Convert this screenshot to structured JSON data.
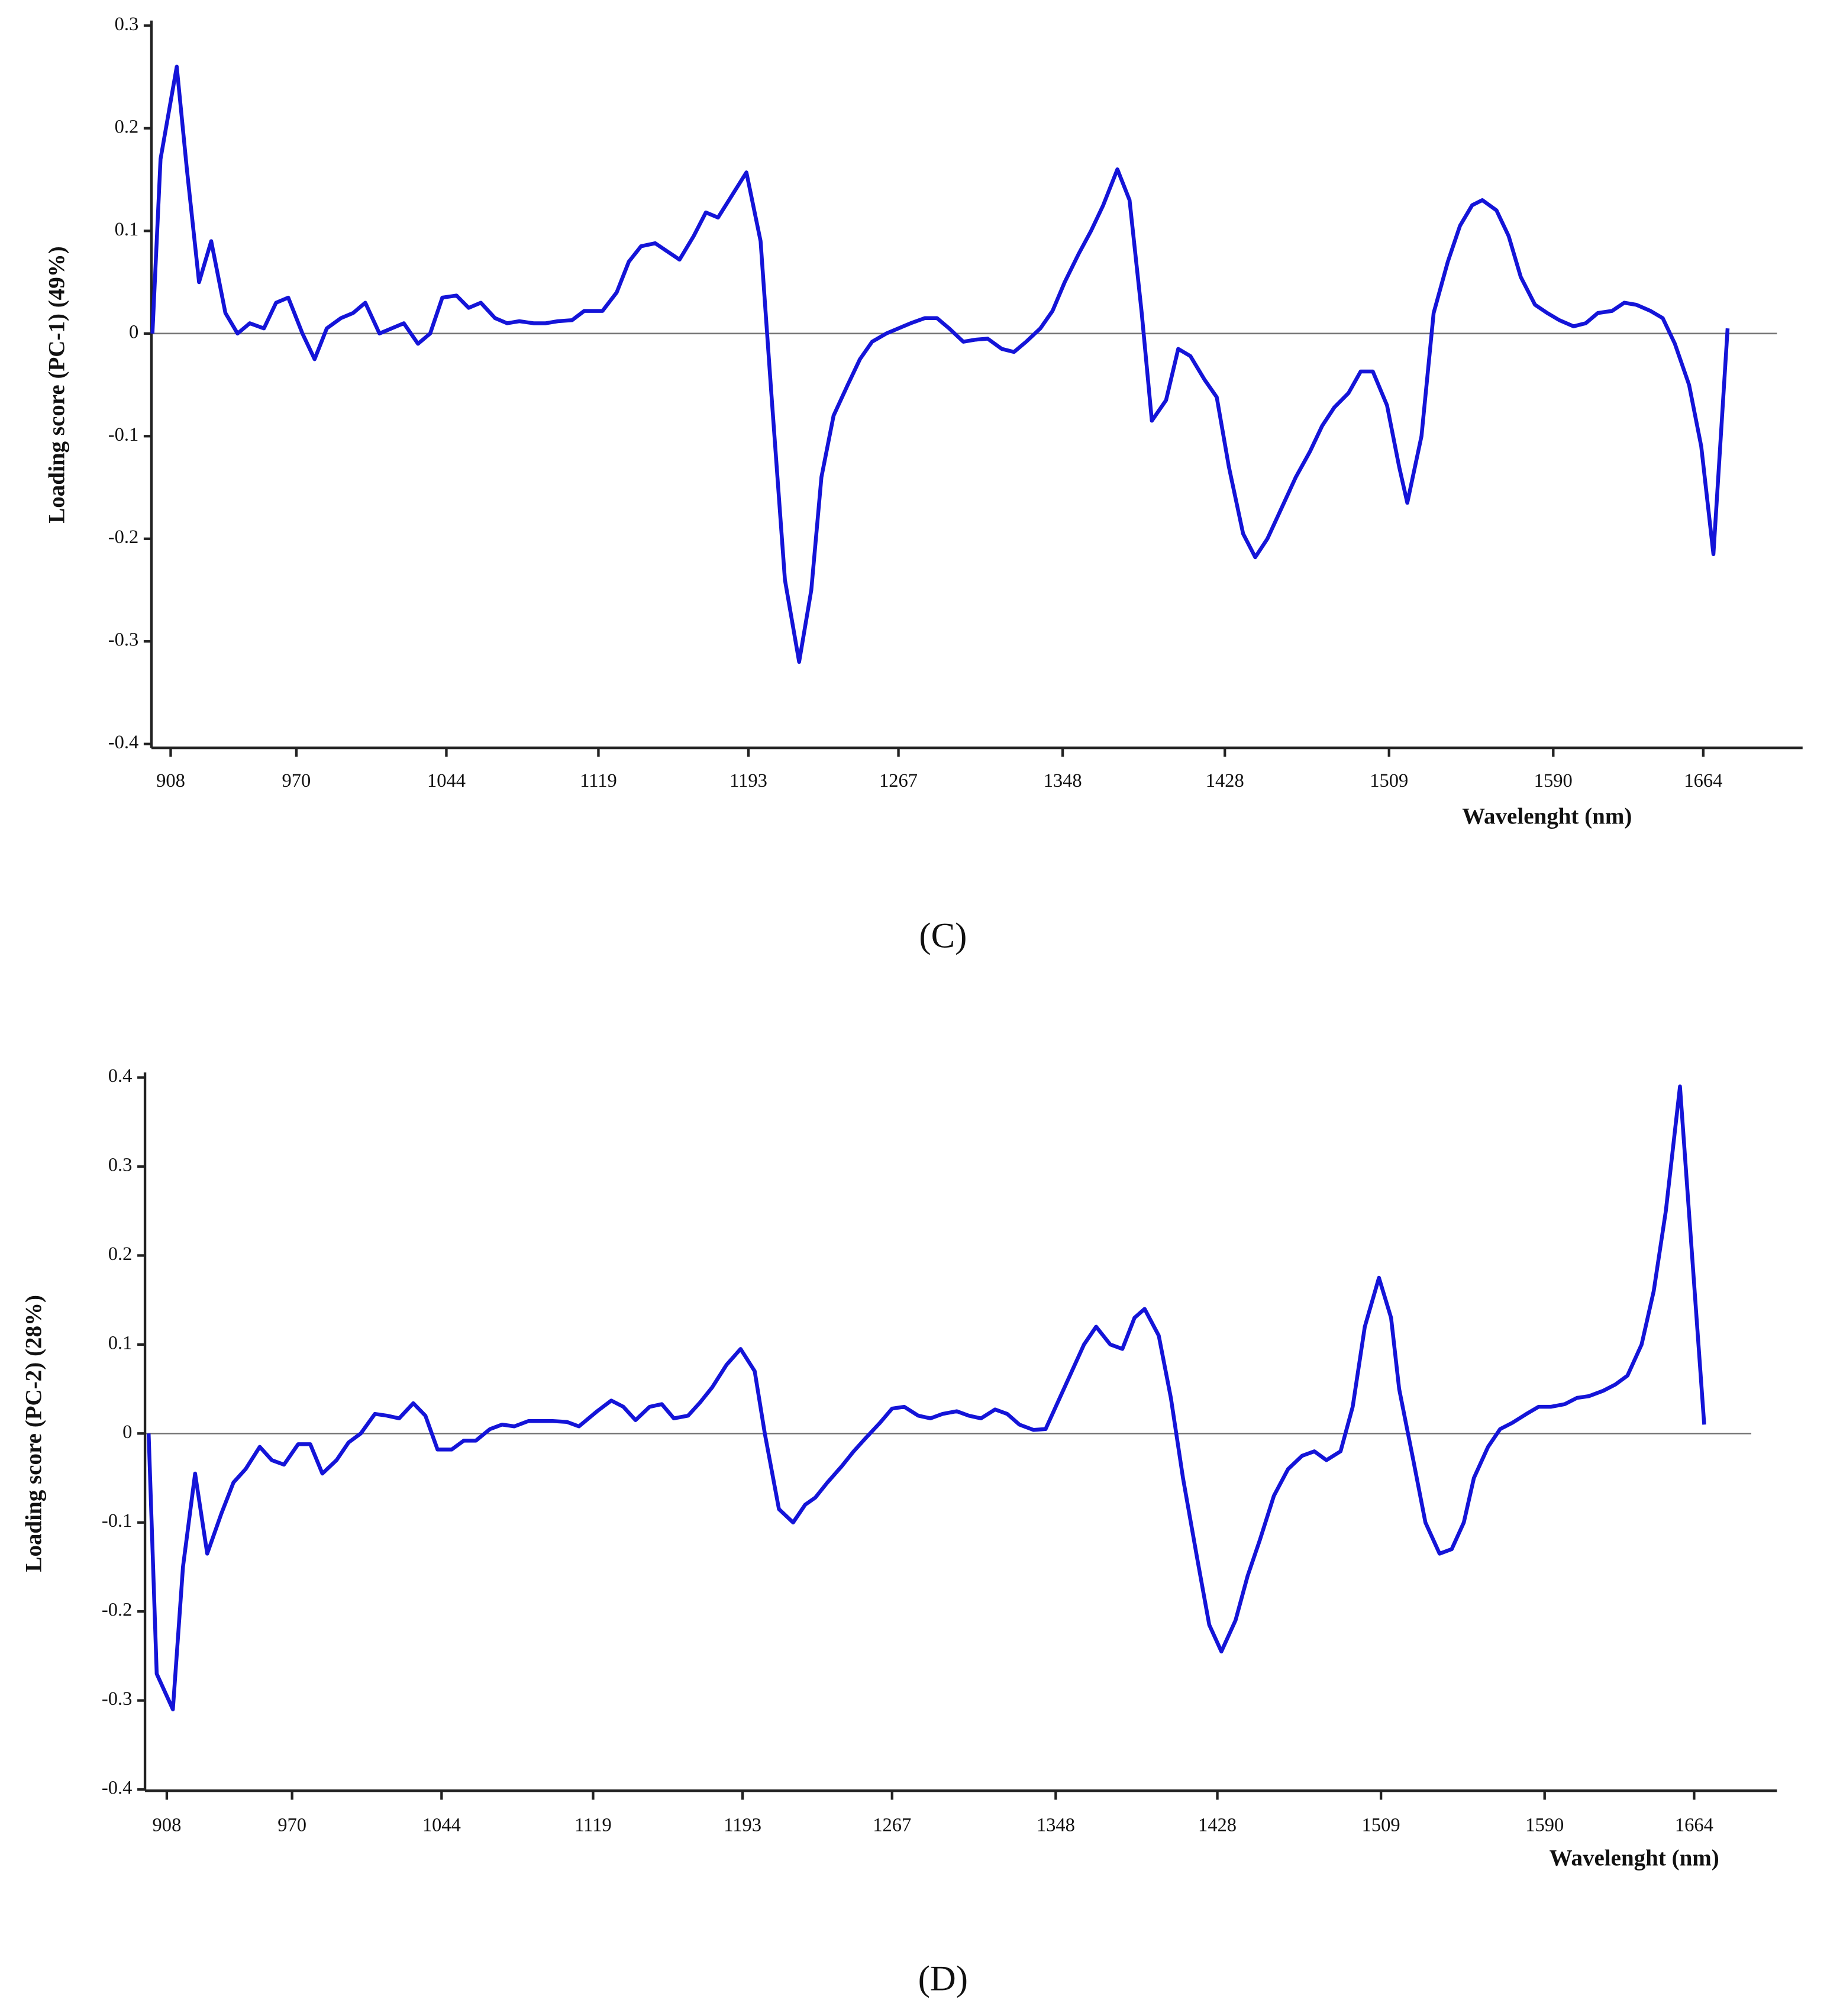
{
  "chart_data": [
    {
      "type": "line",
      "caption": "(C)",
      "ylabel": "Loading score (PC-1) (49%)",
      "xlabel": "Wavelenght (nm)",
      "color": "#1414d8",
      "xlim": [
        898.5,
        1713
      ],
      "ylim": [
        -0.4,
        0.3
      ],
      "xticks": [
        908,
        970,
        1044,
        1119,
        1193,
        1267,
        1348,
        1428,
        1509,
        1590,
        1664
      ],
      "yticks": [
        0.3,
        0.2,
        0.1,
        0,
        -0.1,
        -0.2,
        -0.3,
        -0.4
      ],
      "x": [
        899,
        903,
        911,
        916,
        922,
        928,
        935,
        941,
        947,
        954,
        960,
        966,
        973,
        979,
        985,
        992,
        998,
        1004,
        1011,
        1017,
        1023,
        1030,
        1036,
        1042,
        1049,
        1055,
        1061,
        1068,
        1074,
        1080,
        1087,
        1093,
        1099,
        1106,
        1112,
        1121,
        1128,
        1134,
        1140,
        1147,
        1153,
        1159,
        1166,
        1172,
        1178,
        1185,
        1192,
        1199,
        1204,
        1211,
        1218,
        1224,
        1229,
        1235,
        1242,
        1248,
        1254,
        1261,
        1267,
        1273,
        1280,
        1286,
        1292,
        1299,
        1305,
        1311,
        1318,
        1324,
        1330,
        1337,
        1343,
        1349,
        1356,
        1362,
        1368,
        1375,
        1381,
        1387,
        1392,
        1399,
        1405,
        1411,
        1418,
        1424,
        1430,
        1437,
        1443,
        1449,
        1456,
        1463,
        1470,
        1476,
        1482,
        1489,
        1495,
        1501,
        1508,
        1514,
        1518,
        1525,
        1531,
        1538,
        1544,
        1550,
        1555,
        1562,
        1568,
        1574,
        1581,
        1587,
        1593,
        1600,
        1606,
        1612,
        1619,
        1625,
        1631,
        1638,
        1644,
        1650,
        1657,
        1663,
        1669,
        1676
      ],
      "values": [
        0,
        0.17,
        0.26,
        0.16,
        0.05,
        0.09,
        0.02,
        0,
        0.01,
        0.005,
        0.03,
        0.035,
        0,
        -0.025,
        0.005,
        0.015,
        0.02,
        0.03,
        0,
        0.005,
        0.01,
        -0.01,
        0,
        0.035,
        0.037,
        0.025,
        0.03,
        0.015,
        0.01,
        0.012,
        0.01,
        0.01,
        0.012,
        0.013,
        0.022,
        0.022,
        0.04,
        0.07,
        0.085,
        0.088,
        0.08,
        0.072,
        0.095,
        0.118,
        0.113,
        0.135,
        0.157,
        0.09,
        -0.05,
        -0.24,
        -0.32,
        -0.25,
        -0.14,
        -0.08,
        -0.05,
        -0.025,
        -0.008,
        0,
        0.005,
        0.01,
        0.015,
        0.015,
        0.005,
        -0.008,
        -0.006,
        -0.005,
        -0.015,
        -0.018,
        -0.008,
        0.005,
        0.022,
        0.05,
        0.078,
        0.1,
        0.125,
        0.16,
        0.13,
        0.02,
        -0.085,
        -0.065,
        -0.015,
        -0.022,
        -0.045,
        -0.062,
        -0.13,
        -0.195,
        -0.218,
        -0.2,
        -0.17,
        -0.14,
        -0.115,
        -0.09,
        -0.072,
        -0.058,
        -0.037,
        -0.037,
        -0.07,
        -0.13,
        -0.165,
        -0.1,
        0.02,
        0.07,
        0.105,
        0.125,
        0.13,
        0.12,
        0.095,
        0.055,
        0.028,
        0.02,
        0.013,
        0.007,
        0.01,
        0.02,
        0.022,
        0.03,
        0.028,
        0.022,
        0.015,
        -0.01,
        -0.05,
        -0.11,
        -0.215,
        0.005
      ]
    },
    {
      "type": "line",
      "caption": "(D)",
      "ylabel": "Loading score  (PC-2) (28%)",
      "xlabel": "Wavelenght (nm)",
      "color": "#1414d8",
      "xlim": [
        897.2,
        1705
      ],
      "ylim": [
        -0.4,
        0.4
      ],
      "xticks": [
        908,
        970,
        1044,
        1119,
        1193,
        1267,
        1348,
        1428,
        1509,
        1590,
        1664
      ],
      "yticks": [
        0.4,
        0.3,
        0.2,
        0.1,
        0,
        -0.1,
        -0.2,
        -0.3,
        -0.4
      ],
      "x": [
        899,
        903,
        911,
        916,
        922,
        928,
        935,
        941,
        947,
        954,
        960,
        966,
        973,
        979,
        985,
        992,
        998,
        1004,
        1011,
        1017,
        1023,
        1030,
        1036,
        1042,
        1049,
        1055,
        1061,
        1068,
        1074,
        1080,
        1087,
        1093,
        1099,
        1106,
        1112,
        1121,
        1128,
        1134,
        1140,
        1147,
        1153,
        1159,
        1166,
        1172,
        1178,
        1185,
        1192,
        1199,
        1204,
        1211,
        1218,
        1224,
        1229,
        1235,
        1242,
        1248,
        1254,
        1261,
        1267,
        1273,
        1280,
        1286,
        1292,
        1299,
        1305,
        1311,
        1318,
        1324,
        1330,
        1337,
        1343,
        1349,
        1356,
        1362,
        1368,
        1375,
        1381,
        1387,
        1392,
        1399,
        1405,
        1411,
        1418,
        1424,
        1430,
        1437,
        1443,
        1449,
        1456,
        1463,
        1470,
        1476,
        1482,
        1489,
        1495,
        1501,
        1508,
        1514,
        1518,
        1525,
        1531,
        1538,
        1544,
        1550,
        1555,
        1562,
        1568,
        1574,
        1581,
        1587,
        1593,
        1600,
        1606,
        1612,
        1619,
        1625,
        1631,
        1638,
        1644,
        1650,
        1657,
        1663,
        1669,
        1676
      ],
      "values": [
        0,
        -0.27,
        -0.31,
        -0.15,
        -0.045,
        -0.135,
        -0.09,
        -0.055,
        -0.04,
        -0.015,
        -0.03,
        -0.035,
        -0.012,
        -0.012,
        -0.045,
        -0.03,
        -0.01,
        0,
        0.022,
        0.02,
        0.017,
        0.034,
        0.02,
        -0.018,
        -0.018,
        -0.008,
        -0.008,
        0.005,
        0.01,
        0.008,
        0.014,
        0.014,
        0.014,
        0.013,
        0.008,
        0.025,
        0.037,
        0.03,
        0.015,
        0.03,
        0.033,
        0.017,
        0.02,
        0.035,
        0.052,
        0.077,
        0.095,
        0.07,
        0,
        -0.085,
        -0.1,
        -0.08,
        -0.072,
        -0.055,
        -0.037,
        -0.02,
        -0.005,
        0.012,
        0.028,
        0.03,
        0.02,
        0.017,
        0.022,
        0.025,
        0.02,
        0.017,
        0.027,
        0.022,
        0.01,
        0.004,
        0.005,
        0.035,
        0.07,
        0.1,
        0.12,
        0.1,
        0.095,
        0.13,
        0.14,
        0.11,
        0.04,
        -0.05,
        -0.14,
        -0.215,
        -0.245,
        -0.21,
        -0.16,
        -0.12,
        -0.07,
        -0.04,
        -0.025,
        -0.02,
        -0.03,
        -0.02,
        0.03,
        0.12,
        0.175,
        0.13,
        0.05,
        -0.03,
        -0.1,
        -0.135,
        -0.13,
        -0.1,
        -0.05,
        -0.015,
        0.005,
        0.012,
        0.022,
        0.03,
        0.03,
        0.033,
        0.04,
        0.042,
        0.048,
        0.055,
        0.065,
        0.1,
        0.16,
        0.25,
        0.39,
        0.2,
        0.01,
        null
      ]
    }
  ]
}
